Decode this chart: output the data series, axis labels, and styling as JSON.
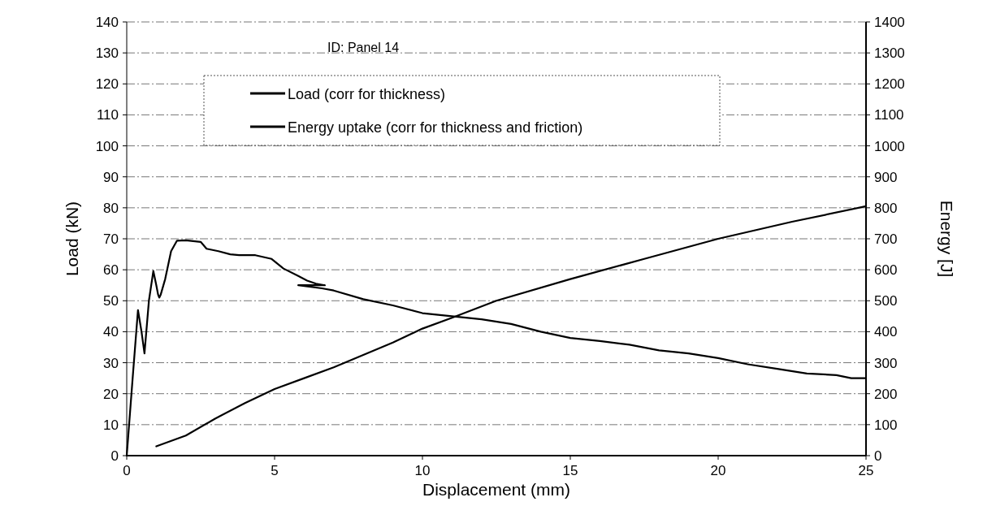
{
  "chart_data": {
    "type": "line",
    "xlabel": "Displacement (mm)",
    "ylabel": "Load (kN)",
    "y2label": "Energy [J]",
    "annotations": [
      "ID:  Panel 14"
    ],
    "xlim": [
      0,
      25
    ],
    "xticks": [
      0,
      5,
      10,
      15,
      20,
      25
    ],
    "ylim": [
      0,
      140
    ],
    "yticks": [
      0,
      10,
      20,
      30,
      40,
      50,
      60,
      70,
      80,
      90,
      100,
      110,
      120,
      130,
      140
    ],
    "y2lim": [
      0,
      1400
    ],
    "y2ticks": [
      0,
      100,
      200,
      300,
      400,
      500,
      600,
      700,
      800,
      900,
      1000,
      1100,
      1200,
      1300,
      1400
    ],
    "grid": "y",
    "legend": "top",
    "line_style": "solid",
    "marker": "none",
    "series": [
      {
        "name": "Load (corr for thickness)",
        "color": "#000000",
        "x": [
          0,
          0.2,
          0.38,
          0.5,
          0.6,
          0.75,
          0.9,
          1.0,
          1.06,
          1.1,
          1.15,
          1.3,
          1.5,
          1.7,
          2.0,
          2.5,
          2.7,
          3.1,
          3.5,
          3.8,
          4.35,
          4.9,
          5.3,
          5.8,
          6.1,
          6.4,
          6.7,
          5.8,
          6.6,
          7,
          8,
          9,
          10,
          11,
          12,
          13,
          14,
          15,
          16,
          17,
          18,
          19,
          20,
          21,
          22,
          23,
          24,
          24.5,
          25
        ],
        "values": [
          0,
          25,
          47,
          40,
          33,
          50,
          59.6,
          55,
          52,
          51,
          52,
          57,
          66,
          69.4,
          69.5,
          69,
          66.8,
          66,
          65,
          64.7,
          64.7,
          63.5,
          60.4,
          58,
          56.5,
          55.5,
          55,
          55,
          54,
          53.3,
          50.5,
          48.5,
          46,
          45,
          44,
          42.5,
          40,
          38,
          37,
          35.8,
          34,
          33,
          31.5,
          29.5,
          28,
          26.5,
          26,
          25,
          25
        ]
      },
      {
        "name": "Energy uptake (corr for thickness and friction)",
        "color": "#000000",
        "axis": "y2",
        "x": [
          1,
          2,
          3,
          4,
          5,
          6,
          7,
          8,
          9,
          10,
          11,
          12.5,
          15,
          17.5,
          20,
          22.5,
          25
        ],
        "values": [
          30,
          65,
          120,
          170,
          215,
          250,
          285,
          325,
          365,
          410,
          445,
          500,
          570,
          635,
          700,
          755,
          805
        ]
      }
    ]
  }
}
